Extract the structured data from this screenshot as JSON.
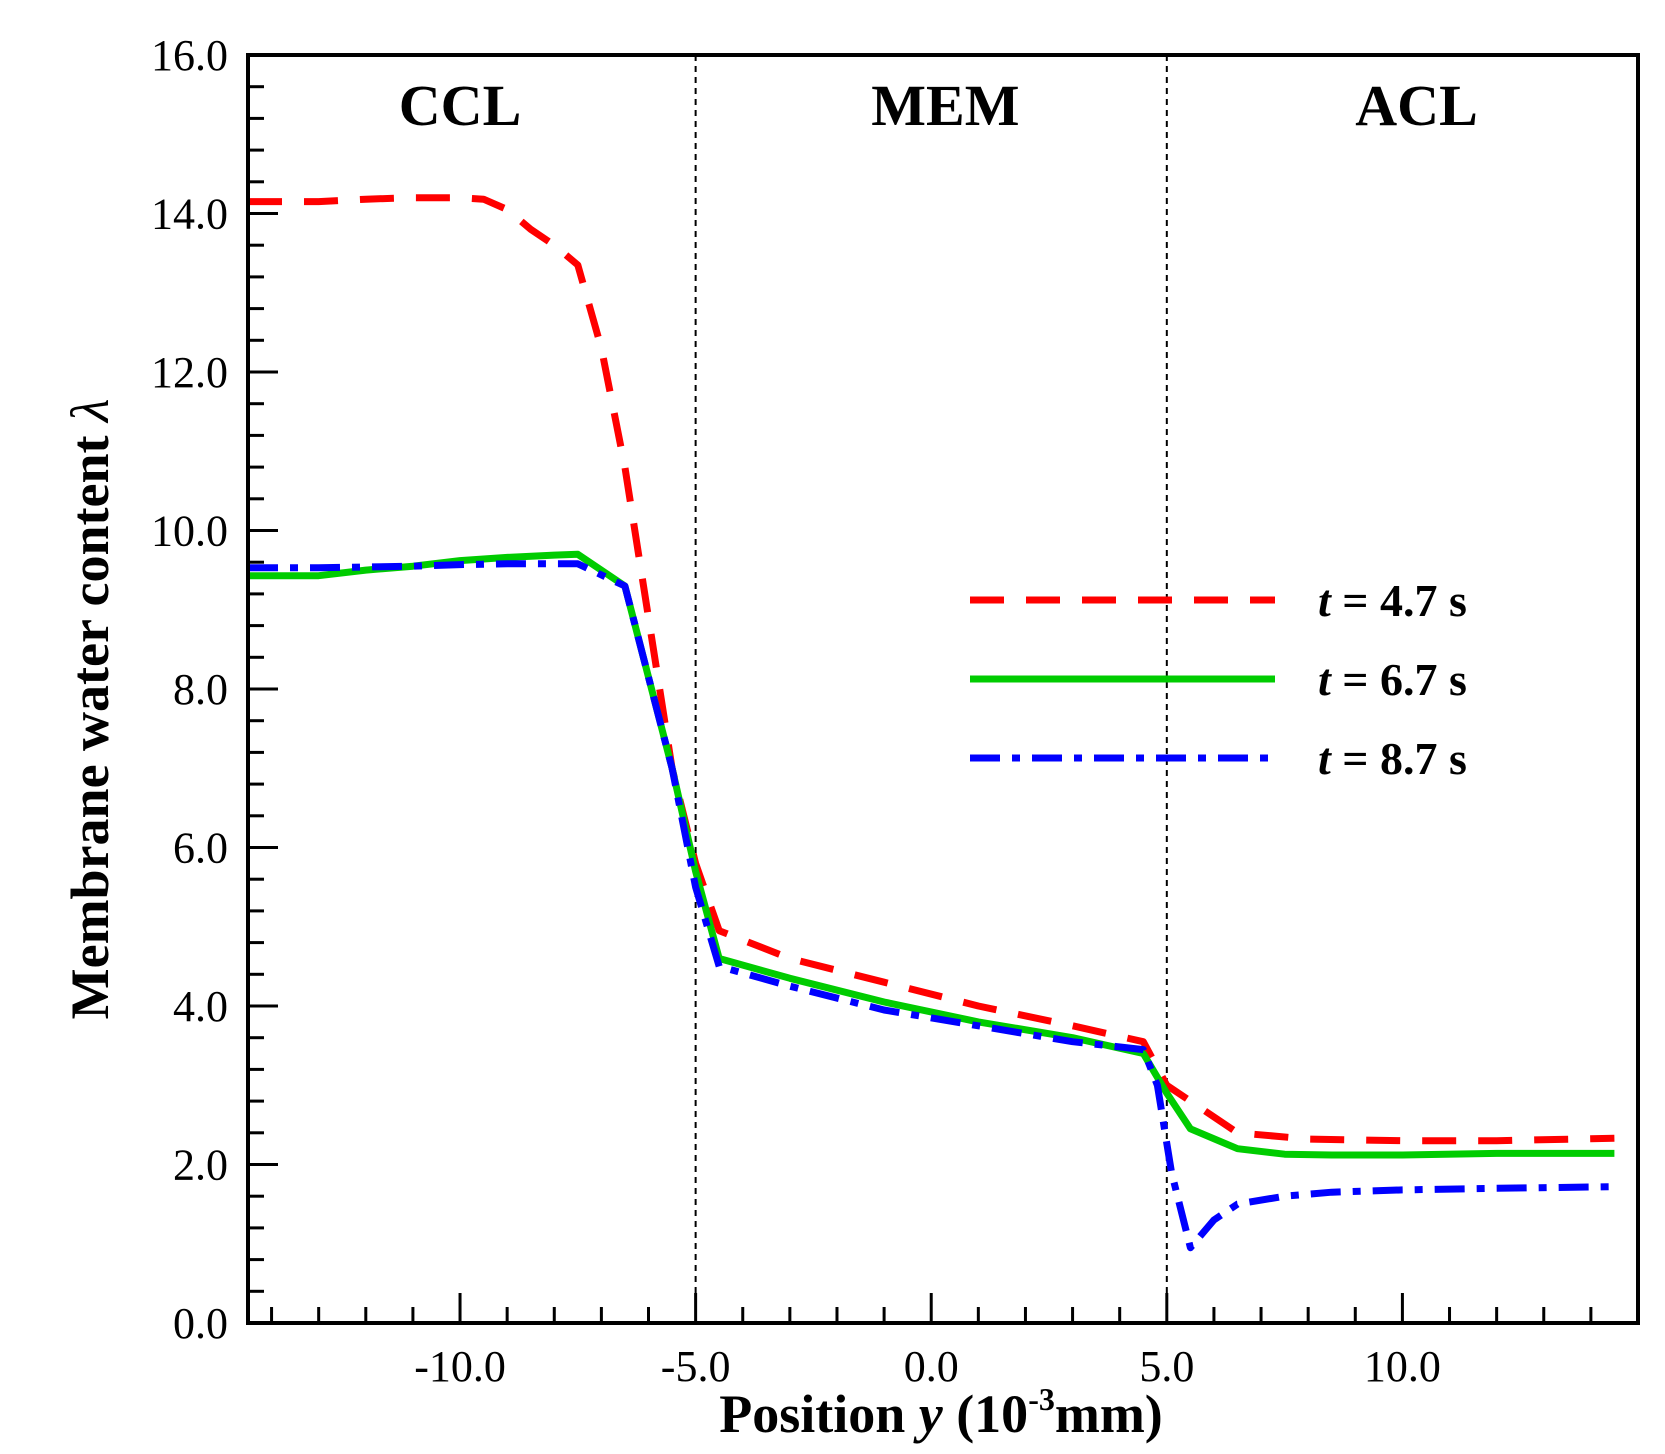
{
  "chart_data": {
    "type": "line",
    "xlabel": {
      "prefix": "Position ",
      "var": "y",
      "mid": " (10",
      "sup": "-3",
      "suffix": "mm)"
    },
    "ylabel": {
      "text": "Membrane water content ",
      "symbol": "λ"
    },
    "xlim": [
      -14.5,
      15.0
    ],
    "ylim": [
      0.0,
      16.0
    ],
    "x_major_ticks": [
      -10.0,
      -5.0,
      0.0,
      5.0,
      10.0
    ],
    "x_tick_labels": [
      "-10.0",
      "-5.0",
      "0.0",
      "5.0",
      "10.0"
    ],
    "y_major_ticks": [
      0.0,
      2.0,
      4.0,
      6.0,
      8.0,
      10.0,
      12.0,
      14.0,
      16.0
    ],
    "y_tick_labels": [
      "0.0",
      "2.0",
      "4.0",
      "6.0",
      "8.0",
      "10.0",
      "12.0",
      "14.0",
      "16.0"
    ],
    "grid": false,
    "legend_position": "right-middle",
    "regions": [
      {
        "label": "CCL",
        "x_center": -10.0
      },
      {
        "label": "MEM",
        "x_center": 0.3
      },
      {
        "label": "ACL",
        "x_center": 10.3
      }
    ],
    "region_boundaries": [
      -5.0,
      5.0
    ],
    "series": [
      {
        "name": "t = 4.7 s",
        "legend": {
          "var": "t",
          "rest": " = 4.7 s"
        },
        "color": "#ff0000",
        "dash": "dash",
        "x": [
          -14.5,
          -13.0,
          -12.0,
          -11.0,
          -10.0,
          -9.5,
          -9.0,
          -8.5,
          -8.0,
          -7.5,
          -7.0,
          -6.5,
          -6.0,
          -5.5,
          -5.0,
          -4.5,
          -3.0,
          -1.0,
          1.0,
          3.0,
          4.5,
          5.0,
          5.5,
          6.5,
          8.0,
          10.0,
          12.0,
          14.5
        ],
        "y": [
          14.15,
          14.15,
          14.18,
          14.2,
          14.2,
          14.18,
          14.05,
          13.8,
          13.6,
          13.35,
          12.3,
          10.8,
          8.9,
          7.0,
          5.8,
          4.95,
          4.6,
          4.3,
          4.0,
          3.75,
          3.55,
          3.0,
          2.8,
          2.4,
          2.32,
          2.3,
          2.3,
          2.33
        ]
      },
      {
        "name": "t = 6.7 s",
        "legend": {
          "var": "t",
          "rest": " = 6.7 s"
        },
        "color": "#00cc00",
        "dash": "solid",
        "x": [
          -14.5,
          -13.0,
          -12.0,
          -11.0,
          -10.0,
          -9.0,
          -8.0,
          -7.5,
          -6.5,
          -5.5,
          -5.0,
          -4.5,
          -3.0,
          -1.0,
          1.0,
          3.0,
          4.5,
          5.0,
          5.5,
          6.5,
          7.5,
          8.5,
          10.0,
          12.0,
          14.5
        ],
        "y": [
          9.43,
          9.43,
          9.5,
          9.55,
          9.62,
          9.66,
          9.69,
          9.7,
          9.3,
          7.0,
          5.7,
          4.6,
          4.35,
          4.05,
          3.8,
          3.6,
          3.4,
          2.9,
          2.45,
          2.2,
          2.13,
          2.12,
          2.12,
          2.14,
          2.14
        ]
      },
      {
        "name": "t = 8.7 s",
        "legend": {
          "var": "t",
          "rest": " = 8.7 s"
        },
        "color": "#0000ff",
        "dash": "dashdot",
        "x": [
          -14.5,
          -13.0,
          -12.0,
          -11.0,
          -10.0,
          -9.0,
          -8.0,
          -7.5,
          -6.5,
          -5.5,
          -5.0,
          -4.5,
          -3.0,
          -1.0,
          1.0,
          3.0,
          4.5,
          4.8,
          5.1,
          5.5,
          6.0,
          6.5,
          7.5,
          8.5,
          10.0,
          12.0,
          14.5
        ],
        "y": [
          9.53,
          9.53,
          9.54,
          9.55,
          9.57,
          9.58,
          9.58,
          9.58,
          9.3,
          7.0,
          5.5,
          4.5,
          4.25,
          3.95,
          3.75,
          3.55,
          3.45,
          3.0,
          1.9,
          0.95,
          1.3,
          1.5,
          1.6,
          1.65,
          1.68,
          1.7,
          1.72
        ]
      }
    ]
  }
}
